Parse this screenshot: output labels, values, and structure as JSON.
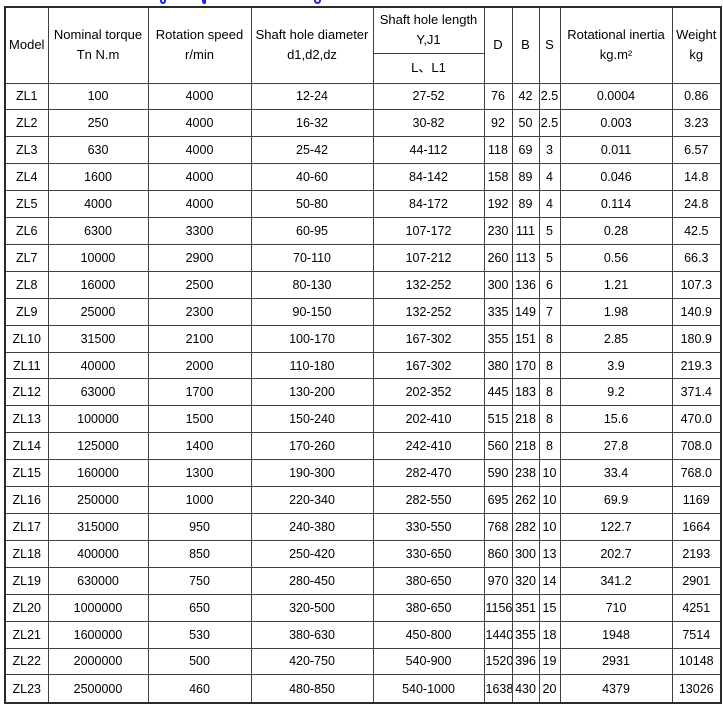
{
  "page": {
    "clipped_blue_title_fragments_color": "#2323f0",
    "background_color": "#ffffff",
    "border_color": "#3f3f3f",
    "text_color": "#000000"
  },
  "table": {
    "headers": {
      "model": "Model",
      "nominal_torque_line1": "Nominal torque",
      "nominal_torque_line2": "Tn N.m",
      "rotation_speed_line1": "Rotation speed",
      "rotation_speed_line2": "r/min",
      "shaft_hole_diameter_line1": "Shaft hole diameter",
      "shaft_hole_diameter_line2": "d1,d2,dz",
      "shaft_hole_length_line1": "Shaft hole length",
      "shaft_hole_length_line2": "Y,J1",
      "shaft_hole_length_sub": "L、L1",
      "d": "D",
      "b": "B",
      "s": "S",
      "rotational_inertia_line1": "Rotational inertia",
      "rotational_inertia_line2": "kg.m²",
      "weight_line1": "Weight",
      "weight_line2": "kg"
    },
    "column_keys": [
      "model",
      "torque",
      "speed",
      "diameter",
      "length",
      "d",
      "b",
      "s",
      "inertia",
      "weight"
    ],
    "rows": [
      {
        "model": "ZL1",
        "torque": "100",
        "speed": "4000",
        "diameter": "12-24",
        "length": "27-52",
        "d": "76",
        "b": "42",
        "s": "2.5",
        "inertia": "0.0004",
        "weight": "0.86"
      },
      {
        "model": "ZL2",
        "torque": "250",
        "speed": "4000",
        "diameter": "16-32",
        "length": "30-82",
        "d": "92",
        "b": "50",
        "s": "2.5",
        "inertia": "0.003",
        "weight": "3.23"
      },
      {
        "model": "ZL3",
        "torque": "630",
        "speed": "4000",
        "diameter": "25-42",
        "length": "44-112",
        "d": "118",
        "b": "69",
        "s": "3",
        "inertia": "0.011",
        "weight": "6.57"
      },
      {
        "model": "ZL4",
        "torque": "1600",
        "speed": "4000",
        "diameter": "40-60",
        "length": "84-142",
        "d": "158",
        "b": "89",
        "s": "4",
        "inertia": "0.046",
        "weight": "14.8"
      },
      {
        "model": "ZL5",
        "torque": "4000",
        "speed": "4000",
        "diameter": "50-80",
        "length": "84-172",
        "d": "192",
        "b": "89",
        "s": "4",
        "inertia": "0.114",
        "weight": "24.8"
      },
      {
        "model": "ZL6",
        "torque": "6300",
        "speed": "3300",
        "diameter": "60-95",
        "length": "107-172",
        "d": "230",
        "b": "111",
        "s": "5",
        "inertia": "0.28",
        "weight": "42.5"
      },
      {
        "model": "ZL7",
        "torque": "10000",
        "speed": "2900",
        "diameter": "70-110",
        "length": "107-212",
        "d": "260",
        "b": "113",
        "s": "5",
        "inertia": "0.56",
        "weight": "66.3"
      },
      {
        "model": "ZL8",
        "torque": "16000",
        "speed": "2500",
        "diameter": "80-130",
        "length": "132-252",
        "d": "300",
        "b": "136",
        "s": "6",
        "inertia": "1.21",
        "weight": "107.3"
      },
      {
        "model": "ZL9",
        "torque": "25000",
        "speed": "2300",
        "diameter": "90-150",
        "length": "132-252",
        "d": "335",
        "b": "149",
        "s": "7",
        "inertia": "1.98",
        "weight": "140.9"
      },
      {
        "model": "ZL10",
        "torque": "31500",
        "speed": "2100",
        "diameter": "100-170",
        "length": "167-302",
        "d": "355",
        "b": "151",
        "s": "8",
        "inertia": "2.85",
        "weight": "180.9"
      },
      {
        "model": "ZL11",
        "torque": "40000",
        "speed": "2000",
        "diameter": "110-180",
        "length": "167-302",
        "d": "380",
        "b": "170",
        "s": "8",
        "inertia": "3.9",
        "weight": "219.3"
      },
      {
        "model": "ZL12",
        "torque": "63000",
        "speed": "1700",
        "diameter": "130-200",
        "length": "202-352",
        "d": "445",
        "b": "183",
        "s": "8",
        "inertia": "9.2",
        "weight": "371.4"
      },
      {
        "model": "ZL13",
        "torque": "100000",
        "speed": "1500",
        "diameter": "150-240",
        "length": "202-410",
        "d": "515",
        "b": "218",
        "s": "8",
        "inertia": "15.6",
        "weight": "470.0"
      },
      {
        "model": "ZL14",
        "torque": "125000",
        "speed": "1400",
        "diameter": "170-260",
        "length": "242-410",
        "d": "560",
        "b": "218",
        "s": "8",
        "inertia": "27.8",
        "weight": "708.0"
      },
      {
        "model": "ZL15",
        "torque": "160000",
        "speed": "1300",
        "diameter": "190-300",
        "length": "282-470",
        "d": "590",
        "b": "238",
        "s": "10",
        "inertia": "33.4",
        "weight": "768.0"
      },
      {
        "model": "ZL16",
        "torque": "250000",
        "speed": "1000",
        "diameter": "220-340",
        "length": "282-550",
        "d": "695",
        "b": "262",
        "s": "10",
        "inertia": "69.9",
        "weight": "1169"
      },
      {
        "model": "ZL17",
        "torque": "315000",
        "speed": "950",
        "diameter": "240-380",
        "length": "330-550",
        "d": "768",
        "b": "282",
        "s": "10",
        "inertia": "122.7",
        "weight": "1664"
      },
      {
        "model": "ZL18",
        "torque": "400000",
        "speed": "850",
        "diameter": "250-420",
        "length": "330-650",
        "d": "860",
        "b": "300",
        "s": "13",
        "inertia": "202.7",
        "weight": "2193"
      },
      {
        "model": "ZL19",
        "torque": "630000",
        "speed": "750",
        "diameter": "280-450",
        "length": "380-650",
        "d": "970",
        "b": "320",
        "s": "14",
        "inertia": "341.2",
        "weight": "2901"
      },
      {
        "model": "ZL20",
        "torque": "1000000",
        "speed": "650",
        "diameter": "320-500",
        "length": "380-650",
        "d": "1156",
        "b": "351",
        "s": "15",
        "inertia": "710",
        "weight": "4251"
      },
      {
        "model": "ZL21",
        "torque": "1600000",
        "speed": "530",
        "diameter": "380-630",
        "length": "450-800",
        "d": "1440",
        "b": "355",
        "s": "18",
        "inertia": "1948",
        "weight": "7514"
      },
      {
        "model": "ZL22",
        "torque": "2000000",
        "speed": "500",
        "diameter": "420-750",
        "length": "540-900",
        "d": "1520",
        "b": "396",
        "s": "19",
        "inertia": "2931",
        "weight": "10148"
      },
      {
        "model": "ZL23",
        "torque": "2500000",
        "speed": "460",
        "diameter": "480-850",
        "length": "540-1000",
        "d": "1638",
        "b": "430",
        "s": "20",
        "inertia": "4379",
        "weight": "13026"
      }
    ]
  }
}
